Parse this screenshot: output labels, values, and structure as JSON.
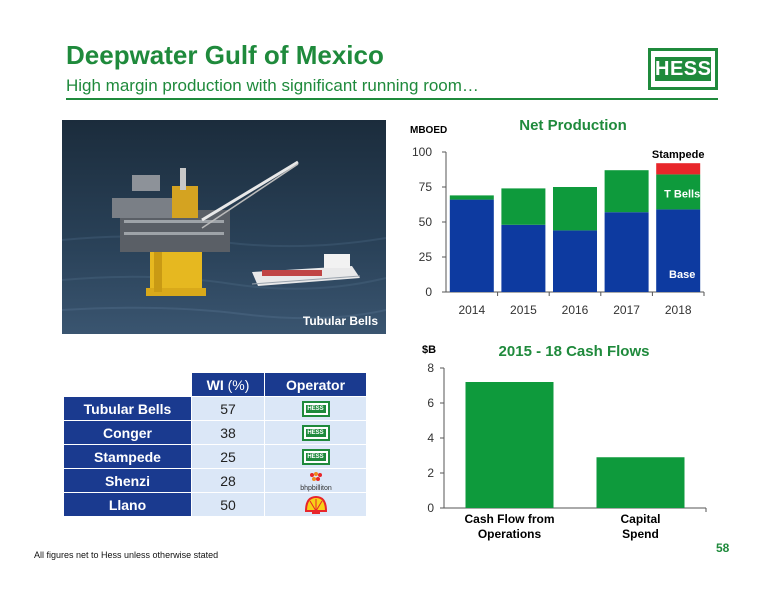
{
  "header": {
    "title": "Deepwater Gulf of Mexico",
    "subtitle": "High margin production with significant running room…",
    "logo_text": "HESS"
  },
  "photo": {
    "caption": "Tubular Bells"
  },
  "table": {
    "headers": {
      "wi": "WI",
      "wi_unit": "(%)",
      "operator": "Operator"
    },
    "rows": [
      {
        "name": "Tubular Bells",
        "wi": "57",
        "operator": "hess-logo"
      },
      {
        "name": "Conger",
        "wi": "38",
        "operator": "hess-logo"
      },
      {
        "name": "Stampede",
        "wi": "25",
        "operator": "hess-logo"
      },
      {
        "name": "Shenzi",
        "wi": "28",
        "operator": "bhpbilliton-logo"
      },
      {
        "name": "Llano",
        "wi": "50",
        "operator": "shell-logo"
      }
    ],
    "mini_logo_text": "HESS",
    "bhp_text": "bhpbilliton"
  },
  "chart_data": [
    {
      "type": "bar",
      "stacked": true,
      "title": "Net Production",
      "ylabel": "MBOED",
      "categories": [
        "2014",
        "2015",
        "2016",
        "2017",
        "2018"
      ],
      "series": [
        {
          "name": "Base",
          "values": [
            66,
            48,
            44,
            57,
            59
          ],
          "color": "#0d3aa0"
        },
        {
          "name": "T Bells",
          "values": [
            3,
            26,
            31,
            30,
            25
          ],
          "color": "#0e9a3c"
        },
        {
          "name": "Stampede",
          "values": [
            0,
            0,
            0,
            0,
            8
          ],
          "color": "#e8262a"
        }
      ],
      "ylim": [
        0,
        100
      ],
      "yticks": [
        "0",
        "25",
        "50",
        "75",
        "100"
      ],
      "grid": false
    },
    {
      "type": "bar",
      "title": "2015 - 18 Cash Flows",
      "ylabel": "$B",
      "categories": [
        "Cash Flow from Operations",
        "Capital Spend"
      ],
      "category_lines": [
        [
          "Cash Flow from",
          "Operations"
        ],
        [
          "Capital",
          "Spend"
        ]
      ],
      "values": [
        7.2,
        2.9
      ],
      "ylim": [
        0,
        8
      ],
      "yticks": [
        "0",
        "2",
        "4",
        "6",
        "8"
      ],
      "color": "#0e9a3c",
      "grid": false
    }
  ],
  "footer": {
    "footnote": "All figures net to Hess unless otherwise stated",
    "page": "58"
  }
}
